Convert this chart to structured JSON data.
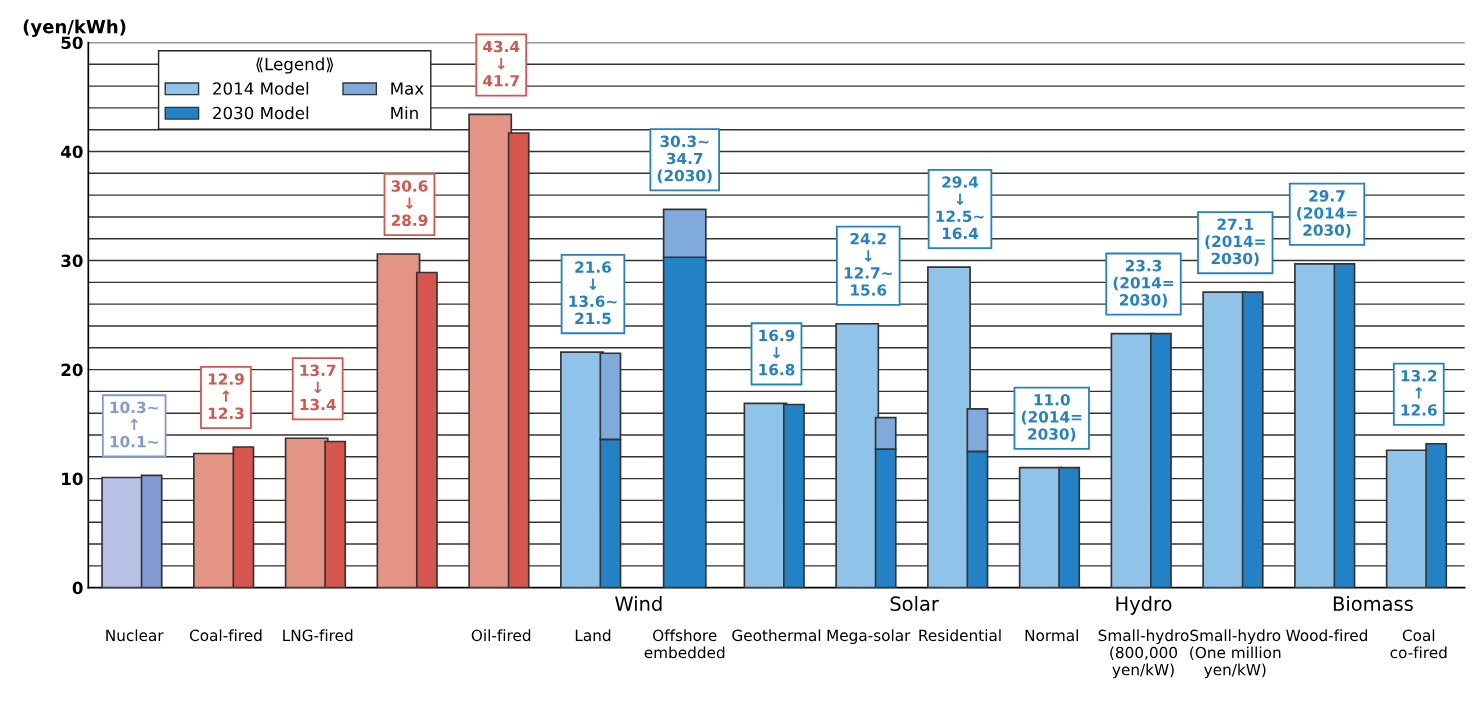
{
  "chart_data": {
    "type": "bar",
    "ylabel": "(yen/kWh)",
    "legend_title": "⟪Legend⟫",
    "legend": "top left",
    "grid": "y",
    "ylim": [
      0,
      50
    ],
    "yticks": [
      0,
      {
        "value": 2,
        "label": null
      },
      {
        "value": 4,
        "label": null
      },
      {
        "value": 6,
        "label": null
      },
      {
        "value": 8,
        "label": null
      },
      10,
      {
        "value": 12,
        "label": null
      },
      {
        "value": 14,
        "label": null
      },
      {
        "value": 16,
        "label": null
      },
      {
        "value": 18,
        "label": null
      },
      20,
      {
        "value": 22,
        "label": null
      },
      {
        "value": 24,
        "label": null
      },
      {
        "value": 26,
        "label": null
      },
      {
        "value": 28,
        "label": null
      },
      30,
      {
        "value": 32,
        "label": null
      },
      {
        "value": 34,
        "label": null
      },
      {
        "value": 36,
        "label": null
      },
      {
        "value": 38,
        "label": null
      },
      40,
      {
        "value": 42,
        "label": null
      },
      {
        "value": 44,
        "label": null
      },
      {
        "value": 46,
        "label": null
      },
      {
        "value": 48,
        "label": null
      },
      50
    ],
    "categories": [
      "Nuclear",
      "Coal-fired",
      "LNG-fired",
      null,
      "Oil-fired",
      "Land",
      "Offshore embedded",
      "Geothermal",
      "Mega-solar",
      "Residential",
      "Normal",
      "Small-hydro (800,000 yen/kW)",
      "Small-hydro (One million yen/kW)",
      "Wood-fired",
      "Coal co-fired"
    ],
    "series": [
      {
        "name": "2014 Model",
        "color": "#90c3ea",
        "colors": [
          "#b8c2e6",
          "#e39484",
          "#e39484",
          "#e39484",
          "#e39484",
          "#90c3ea",
          "#90c3ea",
          "#90c3ea",
          "#90c3ea",
          "#90c3ea",
          "#90c3ea",
          "#90c3ea",
          "#90c3ea",
          "#90c3ea",
          "#90c3ea"
        ],
        "values": [
          10.1,
          12.3,
          13.7,
          30.6,
          43.4,
          21.6,
          null,
          16.9,
          24.2,
          29.4,
          11.0,
          23.3,
          27.1,
          29.7,
          12.6
        ]
      },
      {
        "name": "2030 Model",
        "color": "#2382c6",
        "colors": [
          "#8399d2",
          "#d6554c",
          "#d6554c",
          "#d6554c",
          "#d6554c",
          "#2382c6",
          "#2382c6",
          "#2382c6",
          "#2382c6",
          "#2382c6",
          "#2382c6",
          "#2382c6",
          "#2382c6",
          "#2382c6",
          "#2382c6"
        ],
        "values": [
          10.3,
          12.9,
          13.4,
          28.9,
          41.7,
          13.6,
          30.3,
          16.8,
          12.7,
          12.5,
          11.0,
          23.3,
          27.1,
          29.7,
          13.2
        ],
        "value_labels": [
          "10.3~\n↑\n10.1~",
          "12.9\n↑\n12.3",
          "13.7\n↓\n13.4",
          "30.6\n↓\n28.9",
          "43.4\n↓\n41.7",
          null,
          null,
          "16.9\n↓\n16.8",
          null,
          null,
          "11.0\n(2014=\n2030)",
          "23.3\n(2014=\n2030)",
          "27.1\n(2014=\n2030)",
          "29.7\n(2014=\n2030)",
          "13.2\n↑\n12.6"
        ]
      },
      {
        "name": "Max",
        "color": "#80a9dc",
        "colors": [
          null,
          null,
          null,
          null,
          null,
          "#80a9dc",
          "#80a9dc",
          null,
          "#80a9dc",
          "#80a9dc",
          null,
          null,
          null,
          null,
          null
        ],
        "base": [
          null,
          null,
          null,
          null,
          null,
          13.6,
          30.3,
          null,
          12.7,
          12.5,
          null,
          null,
          null,
          null,
          null
        ],
        "values": [
          null,
          null,
          null,
          null,
          null,
          7.9,
          4.4,
          null,
          2.9,
          3.9,
          null,
          null,
          null,
          null,
          null
        ]
      }
    ],
    "annotations": [
      "Min",
      "Wind",
      "Solar",
      "Hydro",
      "Biomass",
      {
        "text": "21.6\n↓\n13.6~\n21.5",
        "x": "Land",
        "y": 21.6
      },
      {
        "text": "30.3~\n34.7\n(2030)",
        "x": "Offshore embedded",
        "y": 34.7
      },
      {
        "text": "24.2\n↓\n12.7~\n15.6",
        "x": "Mega-solar",
        "y": 24.2
      },
      {
        "text": "29.4\n↓\n12.5~\n16.4",
        "x": "Residential",
        "y": 29.4
      }
    ]
  }
}
